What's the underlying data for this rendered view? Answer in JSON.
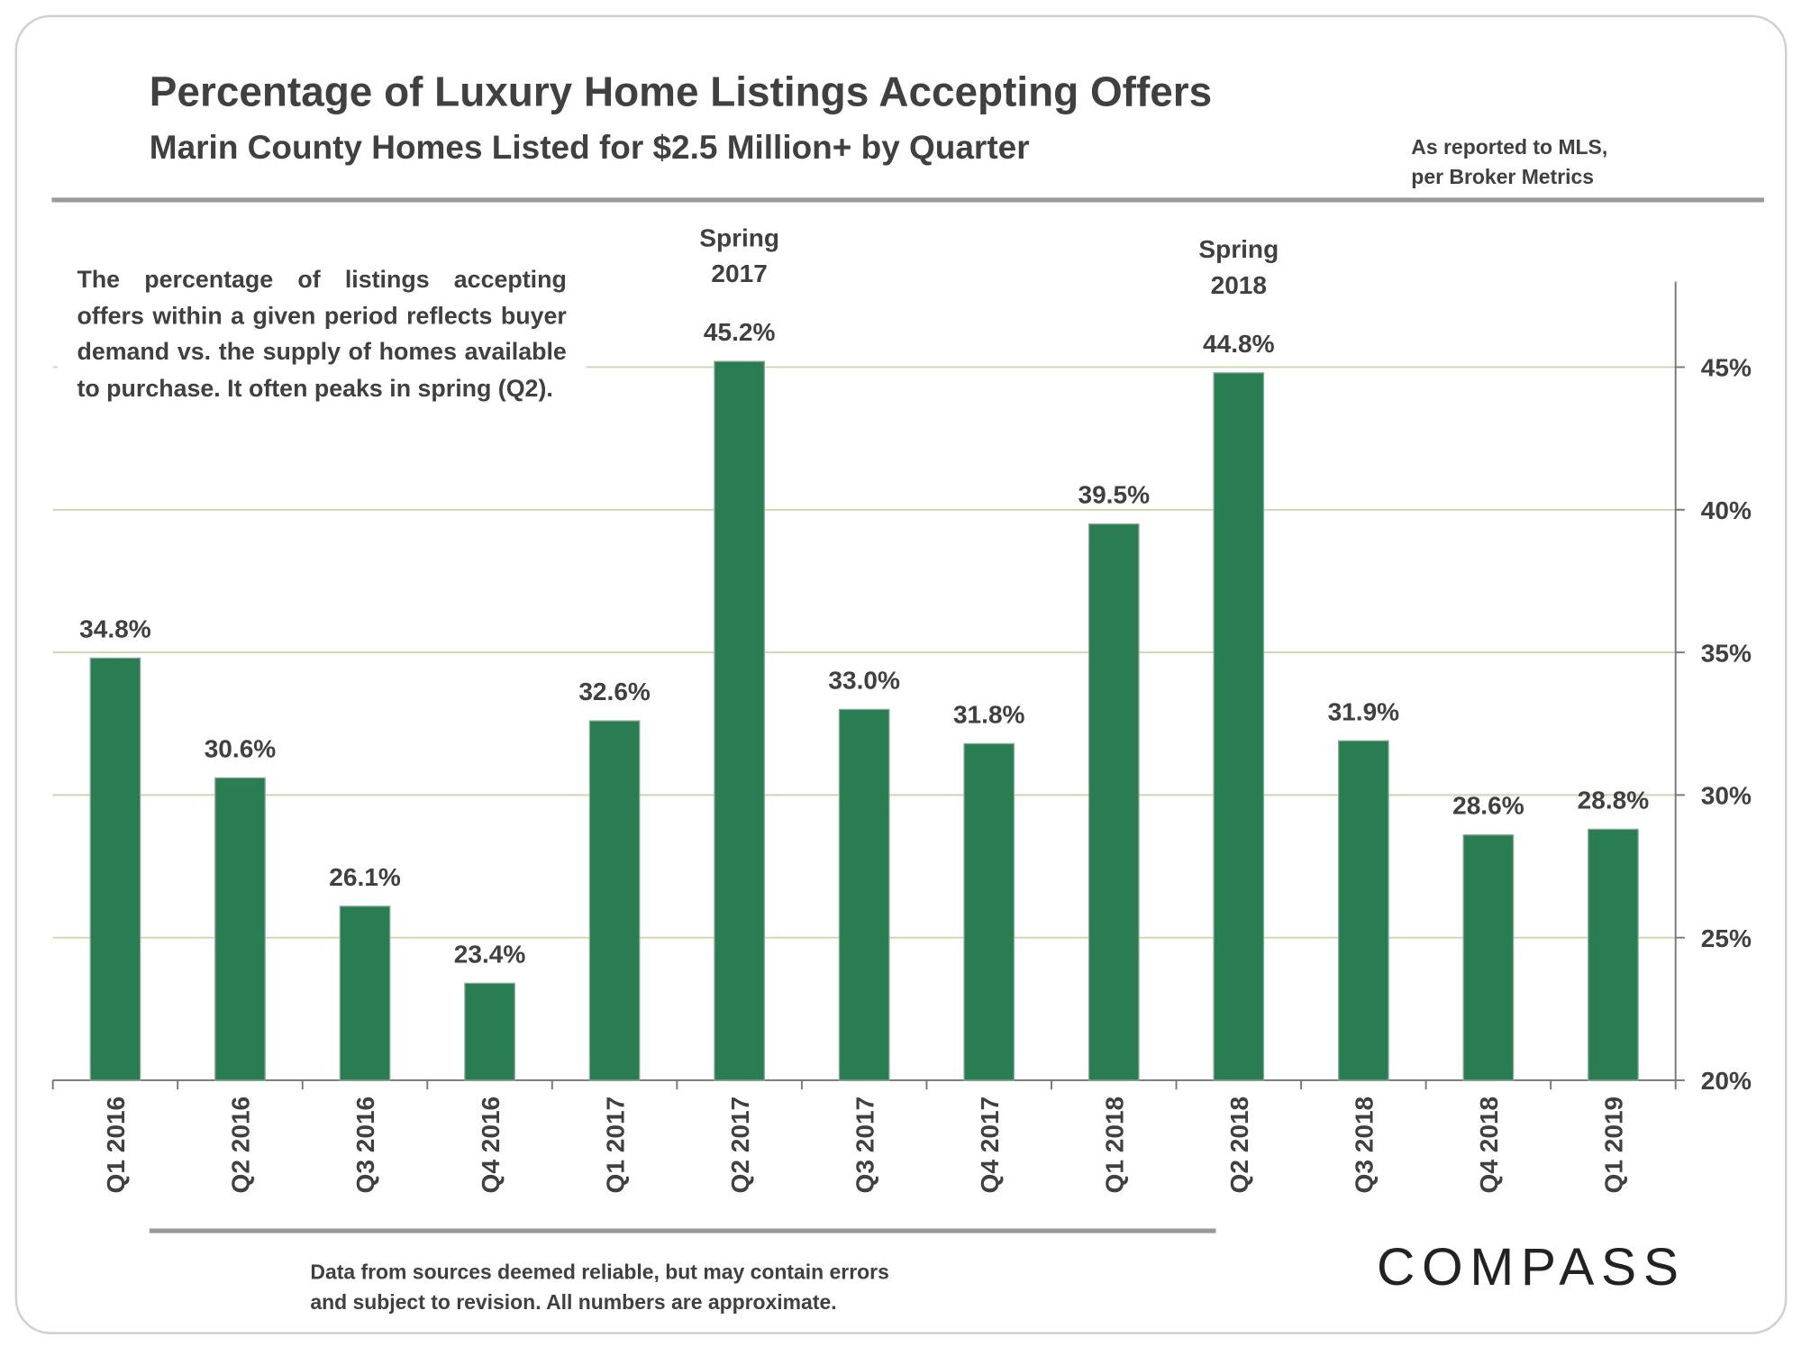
{
  "chart_data": {
    "type": "bar",
    "title": "Percentage of Luxury Home Listings Accepting Offers",
    "subtitle": "Marin County Homes Listed for $2.5 Million+ by Quarter",
    "source": [
      "As reported to MLS,",
      "per Broker Metrics"
    ],
    "note": "The percentage of listings accepting offers within a given period reflects buyer demand vs. the supply of homes available to purchase.  It often peaks in spring (Q2).",
    "annotations": [
      [
        "Spring",
        "2017"
      ],
      [
        "Spring",
        "2018"
      ]
    ],
    "footer": [
      "Data from sources deemed reliable, but may contain errors",
      "and subject to revision. All numbers are approximate."
    ],
    "logo": "COMPASS",
    "categories": [
      "Q1 2016",
      "Q2 2016",
      "Q3 2016",
      "Q4 2016",
      "Q1 2017",
      "Q2 2017",
      "Q3 2017",
      "Q4 2017",
      "Q1 2018",
      "Q2 2018",
      "Q3 2018",
      "Q4 2018",
      "Q1 2019"
    ],
    "values": [
      34.8,
      30.6,
      26.1,
      23.4,
      32.6,
      45.2,
      33.0,
      31.8,
      39.5,
      44.8,
      31.9,
      28.6,
      28.8
    ],
    "value_labels": [
      "34.8%",
      "30.6%",
      "26.1%",
      "23.4%",
      "32.6%",
      "45.2%",
      "33.0%",
      "31.8%",
      "39.5%",
      "44.8%",
      "31.9%",
      "28.6%",
      "28.8%"
    ],
    "color": "#2a7d52",
    "ylim": [
      20,
      48
    ],
    "yticks": [
      {
        "value": 20,
        "label": "20%"
      },
      {
        "value": 25,
        "label": "25%"
      },
      {
        "value": 30,
        "label": "30%"
      },
      {
        "value": 35,
        "label": "35%"
      },
      {
        "value": 40,
        "label": "40%"
      },
      {
        "value": 45,
        "label": "45%"
      }
    ],
    "grid": true
  }
}
